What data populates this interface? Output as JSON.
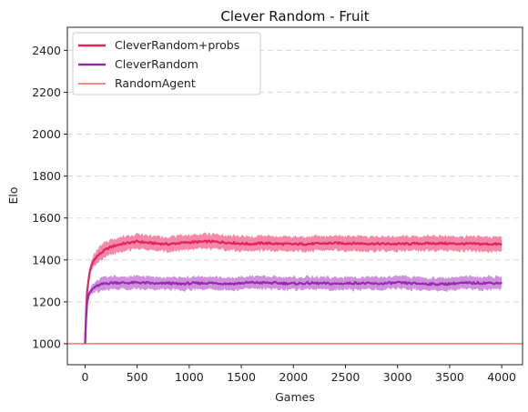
{
  "chart_data": {
    "type": "line",
    "title": "Clever Random - Fruit",
    "xlabel": "Games",
    "ylabel": "Elo",
    "xlim": [
      -170,
      4200
    ],
    "ylim": [
      900,
      2510
    ],
    "xticks": [
      0,
      500,
      1000,
      1500,
      2000,
      2500,
      3000,
      3500,
      4000
    ],
    "yticks": [
      1000,
      1200,
      1400,
      1600,
      1800,
      2000,
      2200,
      2400
    ],
    "grid": "y-dashed",
    "legend_position": "top-left",
    "series": [
      {
        "name": "CleverRandom+probs",
        "color": "#e0245e",
        "band_color": "#f47aa0",
        "band_halfwidth": 35,
        "x": [
          0,
          10,
          20,
          40,
          60,
          80,
          100,
          150,
          200,
          250,
          300,
          350,
          400,
          450,
          500,
          600,
          700,
          800,
          900,
          1000,
          1100,
          1200,
          1300,
          1400,
          1500,
          1600,
          1700,
          1800,
          1900,
          2000,
          2200,
          2400,
          2600,
          2800,
          3000,
          3200,
          3400,
          3600,
          3800,
          4000
        ],
        "y": [
          1000,
          1150,
          1250,
          1330,
          1370,
          1395,
          1410,
          1432,
          1450,
          1462,
          1470,
          1476,
          1480,
          1484,
          1488,
          1482,
          1478,
          1475,
          1480,
          1484,
          1486,
          1488,
          1485,
          1482,
          1478,
          1476,
          1480,
          1478,
          1476,
          1475,
          1477,
          1480,
          1479,
          1477,
          1476,
          1478,
          1479,
          1477,
          1476,
          1475
        ]
      },
      {
        "name": "CleverRandom",
        "color": "#9c27b0",
        "band_color": "#c986d8",
        "band_halfwidth": 30,
        "x": [
          0,
          10,
          20,
          40,
          60,
          80,
          100,
          150,
          200,
          300,
          400,
          500,
          600,
          700,
          800,
          900,
          1000,
          1200,
          1400,
          1600,
          1800,
          2000,
          2200,
          2400,
          2600,
          2800,
          3000,
          3200,
          3400,
          3600,
          3800,
          4000
        ],
        "y": [
          1000,
          1120,
          1200,
          1240,
          1255,
          1265,
          1272,
          1282,
          1288,
          1292,
          1290,
          1292,
          1290,
          1286,
          1290,
          1285,
          1288,
          1290,
          1286,
          1292,
          1290,
          1287,
          1289,
          1286,
          1290,
          1286,
          1291,
          1287,
          1284,
          1289,
          1290,
          1290
        ]
      },
      {
        "name": "RandomAgent",
        "color": "#f0443a",
        "x": [
          -170,
          4200
        ],
        "y": [
          1000,
          1000
        ]
      }
    ]
  }
}
